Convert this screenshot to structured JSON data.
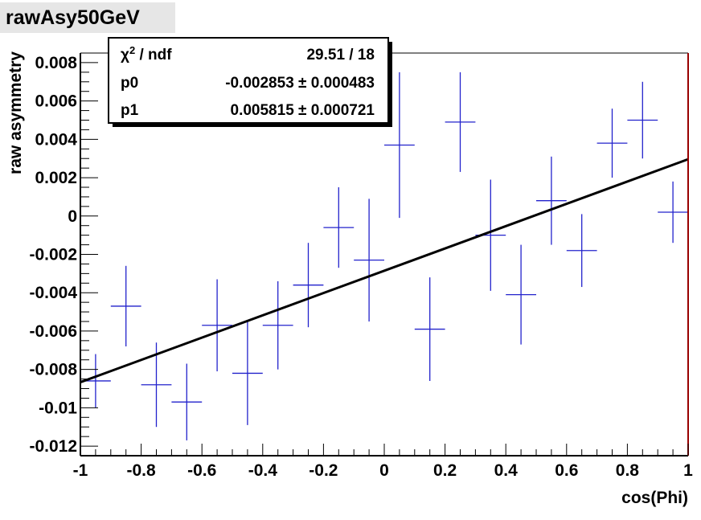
{
  "title": "rawAsy50GeV",
  "stats_box": {
    "rows": [
      {
        "label_base": "χ",
        "label_sup": "2",
        "label_rest": " / ndf",
        "value": "29.51 / 18"
      },
      {
        "label_base": "p0",
        "label_sup": "",
        "label_rest": "",
        "value": "-0.002853 ± 0.000483"
      },
      {
        "label_base": "p1",
        "label_sup": "",
        "label_rest": "",
        "value": "0.005815 ± 0.000721"
      }
    ]
  },
  "chart_data": {
    "type": "scatter",
    "xlabel": "cos(Phi)",
    "ylabel": "raw asymmetry",
    "xlim": [
      -1,
      1
    ],
    "ylim": [
      -0.0125,
      0.0085
    ],
    "x_ticks": [
      {
        "value": -1,
        "label": "-1"
      },
      {
        "value": -0.8,
        "label": "-0.8"
      },
      {
        "value": -0.6,
        "label": "-0.6"
      },
      {
        "value": -0.4,
        "label": "-0.4"
      },
      {
        "value": -0.2,
        "label": "-0.2"
      },
      {
        "value": 0,
        "label": "0"
      },
      {
        "value": 0.2,
        "label": "0.2"
      },
      {
        "value": 0.4,
        "label": "0.4"
      },
      {
        "value": 0.6,
        "label": "0.6"
      },
      {
        "value": 0.8,
        "label": "0.8"
      },
      {
        "value": 1,
        "label": "1"
      }
    ],
    "y_ticks": [
      {
        "value": -0.012,
        "label": "-0.012"
      },
      {
        "value": -0.01,
        "label": "-0.01"
      },
      {
        "value": -0.008,
        "label": "-0.008"
      },
      {
        "value": -0.006,
        "label": "-0.006"
      },
      {
        "value": -0.004,
        "label": "-0.004"
      },
      {
        "value": -0.002,
        "label": "-0.002"
      },
      {
        "value": 0,
        "label": "0"
      },
      {
        "value": 0.002,
        "label": "0.002"
      },
      {
        "value": 0.004,
        "label": "0.004"
      },
      {
        "value": 0.006,
        "label": "0.006"
      },
      {
        "value": 0.008,
        "label": "0.008"
      }
    ],
    "x_bin_half_width": 0.05,
    "points": [
      {
        "x": -0.95,
        "y": -0.0086,
        "err": 0.0014
      },
      {
        "x": -0.85,
        "y": -0.0047,
        "err": 0.0021
      },
      {
        "x": -0.75,
        "y": -0.0088,
        "err": 0.0022
      },
      {
        "x": -0.65,
        "y": -0.0097,
        "err": 0.002
      },
      {
        "x": -0.55,
        "y": -0.0057,
        "err": 0.0024
      },
      {
        "x": -0.45,
        "y": -0.0082,
        "err": 0.0027
      },
      {
        "x": -0.35,
        "y": -0.0057,
        "err": 0.0023
      },
      {
        "x": -0.25,
        "y": -0.0036,
        "err": 0.0022
      },
      {
        "x": -0.15,
        "y": -0.0006,
        "err": 0.0021
      },
      {
        "x": -0.05,
        "y": -0.0023,
        "err": 0.0032
      },
      {
        "x": 0.05,
        "y": 0.0037,
        "err": 0.0038
      },
      {
        "x": 0.15,
        "y": -0.0059,
        "err": 0.0027
      },
      {
        "x": 0.25,
        "y": 0.0049,
        "err": 0.0026
      },
      {
        "x": 0.35,
        "y": -0.001,
        "err": 0.0029
      },
      {
        "x": 0.45,
        "y": -0.0041,
        "err": 0.0026
      },
      {
        "x": 0.55,
        "y": 0.0008,
        "err": 0.0023
      },
      {
        "x": 0.65,
        "y": -0.0018,
        "err": 0.0019
      },
      {
        "x": 0.75,
        "y": 0.0038,
        "err": 0.0018
      },
      {
        "x": 0.85,
        "y": 0.005,
        "err": 0.002
      },
      {
        "x": 0.95,
        "y": 0.0002,
        "err": 0.0016
      }
    ],
    "fit": {
      "p0": -0.002853,
      "p1": 0.005815
    },
    "point_color": "#2222cc",
    "fit_color": "#000000",
    "frame_right_color": "#990000"
  }
}
